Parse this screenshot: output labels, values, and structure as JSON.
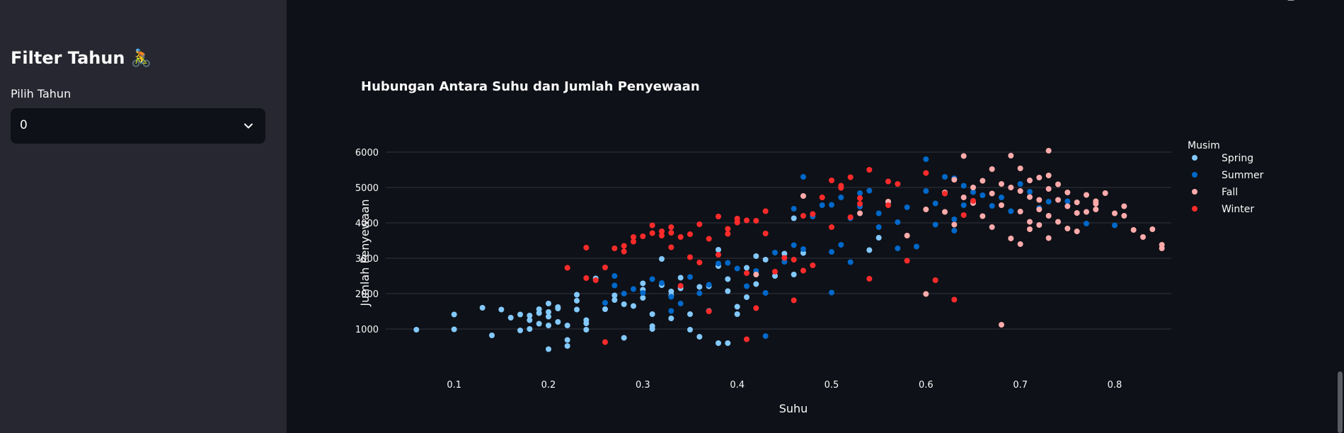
{
  "sidebar": {
    "title": "Filter Tahun 🚴",
    "select_label": "Pilih Tahun",
    "select_value": "0"
  },
  "colors": {
    "Spring": "#83c9ff",
    "Summer": "#0068c9",
    "Fall": "#ffabab",
    "Winter": "#ff2b2b"
  },
  "chart_data": {
    "type": "scatter",
    "title": "Hubungan Antara Suhu dan Jumlah Penyewaan",
    "xlabel": "Suhu",
    "ylabel": "Jumlah Penyewaan",
    "xlim": [
      0.05,
      0.86
    ],
    "ylim": [
      0,
      6500
    ],
    "xticks": [
      0.1,
      0.2,
      0.3,
      0.4,
      0.5,
      0.6,
      0.7,
      0.8
    ],
    "yticks": [
      1000,
      2000,
      3000,
      4000,
      5000,
      6000
    ],
    "grid": "horizontal",
    "legend_title": "Musim",
    "legend_position": "right",
    "series": [
      {
        "name": "Spring",
        "points": [
          [
            0.06,
            980
          ],
          [
            0.1,
            990
          ],
          [
            0.1,
            1410
          ],
          [
            0.13,
            1600
          ],
          [
            0.14,
            820
          ],
          [
            0.15,
            1550
          ],
          [
            0.16,
            1320
          ],
          [
            0.17,
            960
          ],
          [
            0.17,
            1410
          ],
          [
            0.18,
            1380
          ],
          [
            0.18,
            1000
          ],
          [
            0.18,
            1250
          ],
          [
            0.19,
            1150
          ],
          [
            0.19,
            1450
          ],
          [
            0.19,
            1560
          ],
          [
            0.2,
            1720
          ],
          [
            0.2,
            1480
          ],
          [
            0.2,
            1350
          ],
          [
            0.2,
            1100
          ],
          [
            0.2,
            430
          ],
          [
            0.21,
            1620
          ],
          [
            0.21,
            1200
          ],
          [
            0.21,
            1580
          ],
          [
            0.22,
            520
          ],
          [
            0.22,
            690
          ],
          [
            0.22,
            1100
          ],
          [
            0.23,
            1800
          ],
          [
            0.23,
            1970
          ],
          [
            0.23,
            1550
          ],
          [
            0.24,
            1250
          ],
          [
            0.24,
            1160
          ],
          [
            0.24,
            980
          ],
          [
            0.25,
            2430
          ],
          [
            0.26,
            1560
          ],
          [
            0.27,
            1950
          ],
          [
            0.27,
            1820
          ],
          [
            0.28,
            1700
          ],
          [
            0.28,
            750
          ],
          [
            0.29,
            1650
          ],
          [
            0.3,
            1880
          ],
          [
            0.3,
            2110
          ],
          [
            0.3,
            2290
          ],
          [
            0.31,
            1420
          ],
          [
            0.31,
            1080
          ],
          [
            0.31,
            1000
          ],
          [
            0.32,
            2980
          ],
          [
            0.32,
            2240
          ],
          [
            0.33,
            2060
          ],
          [
            0.33,
            1950
          ],
          [
            0.33,
            1300
          ],
          [
            0.34,
            2150
          ],
          [
            0.34,
            2450
          ],
          [
            0.35,
            1420
          ],
          [
            0.35,
            980
          ],
          [
            0.36,
            2190
          ],
          [
            0.36,
            780
          ],
          [
            0.37,
            2210
          ],
          [
            0.37,
            1510
          ],
          [
            0.38,
            600
          ],
          [
            0.38,
            3240
          ],
          [
            0.38,
            2780
          ],
          [
            0.39,
            2410
          ],
          [
            0.39,
            2070
          ],
          [
            0.39,
            600
          ],
          [
            0.4,
            1630
          ],
          [
            0.4,
            1420
          ],
          [
            0.41,
            2730
          ],
          [
            0.41,
            1900
          ],
          [
            0.42,
            2270
          ],
          [
            0.42,
            3060
          ],
          [
            0.43,
            2960
          ],
          [
            0.44,
            2500
          ],
          [
            0.45,
            3130
          ],
          [
            0.46,
            4130
          ],
          [
            0.46,
            2540
          ],
          [
            0.47,
            3150
          ],
          [
            0.54,
            3230
          ],
          [
            0.55,
            3580
          ]
        ]
      },
      {
        "name": "Summer",
        "points": [
          [
            0.26,
            1740
          ],
          [
            0.27,
            2500
          ],
          [
            0.27,
            2230
          ],
          [
            0.28,
            2000
          ],
          [
            0.29,
            2130
          ],
          [
            0.3,
            2020
          ],
          [
            0.31,
            2410
          ],
          [
            0.32,
            2300
          ],
          [
            0.33,
            1510
          ],
          [
            0.33,
            1910
          ],
          [
            0.34,
            1720
          ],
          [
            0.35,
            2470
          ],
          [
            0.36,
            2010
          ],
          [
            0.37,
            2250
          ],
          [
            0.38,
            2850
          ],
          [
            0.39,
            2870
          ],
          [
            0.4,
            2710
          ],
          [
            0.41,
            2210
          ],
          [
            0.42,
            2640
          ],
          [
            0.43,
            800
          ],
          [
            0.43,
            2020
          ],
          [
            0.44,
            3160
          ],
          [
            0.45,
            2900
          ],
          [
            0.46,
            3370
          ],
          [
            0.46,
            4400
          ],
          [
            0.47,
            3260
          ],
          [
            0.47,
            5300
          ],
          [
            0.48,
            4180
          ],
          [
            0.49,
            4500
          ],
          [
            0.5,
            2030
          ],
          [
            0.5,
            3180
          ],
          [
            0.5,
            4510
          ],
          [
            0.51,
            3380
          ],
          [
            0.51,
            4720
          ],
          [
            0.52,
            2890
          ],
          [
            0.52,
            4130
          ],
          [
            0.53,
            4840
          ],
          [
            0.53,
            4460
          ],
          [
            0.54,
            4910
          ],
          [
            0.55,
            3880
          ],
          [
            0.55,
            4270
          ],
          [
            0.56,
            4580
          ],
          [
            0.57,
            3280
          ],
          [
            0.57,
            4020
          ],
          [
            0.58,
            4440
          ],
          [
            0.59,
            3330
          ],
          [
            0.6,
            5800
          ],
          [
            0.6,
            4900
          ],
          [
            0.61,
            4550
          ],
          [
            0.61,
            3950
          ],
          [
            0.62,
            5300
          ],
          [
            0.63,
            5260
          ],
          [
            0.63,
            4100
          ],
          [
            0.63,
            3780
          ],
          [
            0.64,
            4500
          ],
          [
            0.64,
            5050
          ],
          [
            0.65,
            4870
          ],
          [
            0.65,
            4620
          ],
          [
            0.66,
            4780
          ],
          [
            0.67,
            4480
          ],
          [
            0.68,
            4720
          ],
          [
            0.69,
            4330
          ],
          [
            0.7,
            5100
          ],
          [
            0.71,
            4880
          ],
          [
            0.72,
            4420
          ],
          [
            0.73,
            4600
          ],
          [
            0.75,
            4610
          ],
          [
            0.77,
            3980
          ],
          [
            0.78,
            4600
          ],
          [
            0.8,
            3930
          ]
        ]
      },
      {
        "name": "Fall",
        "points": [
          [
            0.42,
            2540
          ],
          [
            0.47,
            4760
          ],
          [
            0.53,
            4270
          ],
          [
            0.56,
            4600
          ],
          [
            0.58,
            3640
          ],
          [
            0.6,
            1990
          ],
          [
            0.6,
            4380
          ],
          [
            0.62,
            4860
          ],
          [
            0.63,
            5220
          ],
          [
            0.63,
            3950
          ],
          [
            0.64,
            5890
          ],
          [
            0.64,
            4720
          ],
          [
            0.65,
            5000
          ],
          [
            0.65,
            4560
          ],
          [
            0.66,
            5190
          ],
          [
            0.66,
            4190
          ],
          [
            0.67,
            5520
          ],
          [
            0.67,
            4830
          ],
          [
            0.67,
            3880
          ],
          [
            0.68,
            5100
          ],
          [
            0.68,
            4500
          ],
          [
            0.68,
            1120
          ],
          [
            0.69,
            5900
          ],
          [
            0.69,
            5000
          ],
          [
            0.69,
            3560
          ],
          [
            0.7,
            5540
          ],
          [
            0.7,
            4900
          ],
          [
            0.7,
            4320
          ],
          [
            0.7,
            3400
          ],
          [
            0.71,
            5200
          ],
          [
            0.71,
            4730
          ],
          [
            0.71,
            4030
          ],
          [
            0.71,
            3820
          ],
          [
            0.72,
            5280
          ],
          [
            0.72,
            4650
          ],
          [
            0.72,
            4380
          ],
          [
            0.72,
            3940
          ],
          [
            0.73,
            6040
          ],
          [
            0.73,
            5340
          ],
          [
            0.73,
            4960
          ],
          [
            0.73,
            4200
          ],
          [
            0.73,
            3570
          ],
          [
            0.74,
            5090
          ],
          [
            0.74,
            4650
          ],
          [
            0.74,
            4030
          ],
          [
            0.75,
            4860
          ],
          [
            0.75,
            4470
          ],
          [
            0.75,
            3840
          ],
          [
            0.76,
            4580
          ],
          [
            0.76,
            4280
          ],
          [
            0.77,
            4790
          ],
          [
            0.77,
            4310
          ],
          [
            0.78,
            4610
          ],
          [
            0.78,
            4380
          ],
          [
            0.78,
            4540
          ],
          [
            0.79,
            4840
          ],
          [
            0.8,
            4270
          ],
          [
            0.81,
            4470
          ],
          [
            0.81,
            4200
          ],
          [
            0.82,
            3800
          ],
          [
            0.83,
            3600
          ],
          [
            0.84,
            3820
          ],
          [
            0.85,
            3380
          ],
          [
            0.85,
            3280
          ],
          [
            0.76,
            3760
          ],
          [
            0.62,
            4310
          ]
        ]
      },
      {
        "name": "Winter",
        "points": [
          [
            0.22,
            2730
          ],
          [
            0.24,
            2440
          ],
          [
            0.24,
            3300
          ],
          [
            0.25,
            2380
          ],
          [
            0.26,
            630
          ],
          [
            0.26,
            2740
          ],
          [
            0.27,
            3280
          ],
          [
            0.28,
            3350
          ],
          [
            0.28,
            3190
          ],
          [
            0.29,
            3470
          ],
          [
            0.29,
            3600
          ],
          [
            0.3,
            3620
          ],
          [
            0.31,
            3930
          ],
          [
            0.31,
            3710
          ],
          [
            0.32,
            3760
          ],
          [
            0.32,
            3640
          ],
          [
            0.33,
            3880
          ],
          [
            0.33,
            3720
          ],
          [
            0.33,
            3310
          ],
          [
            0.34,
            3600
          ],
          [
            0.34,
            2220
          ],
          [
            0.35,
            3680
          ],
          [
            0.35,
            3030
          ],
          [
            0.36,
            3960
          ],
          [
            0.36,
            2880
          ],
          [
            0.37,
            3550
          ],
          [
            0.37,
            1500
          ],
          [
            0.38,
            4180
          ],
          [
            0.38,
            3100
          ],
          [
            0.39,
            3830
          ],
          [
            0.39,
            3690
          ],
          [
            0.4,
            4030
          ],
          [
            0.4,
            4010
          ],
          [
            0.4,
            4120
          ],
          [
            0.41,
            4070
          ],
          [
            0.41,
            2580
          ],
          [
            0.41,
            710
          ],
          [
            0.42,
            4060
          ],
          [
            0.42,
            1590
          ],
          [
            0.43,
            4330
          ],
          [
            0.43,
            3700
          ],
          [
            0.44,
            2620
          ],
          [
            0.45,
            3010
          ],
          [
            0.46,
            1810
          ],
          [
            0.46,
            2960
          ],
          [
            0.47,
            4200
          ],
          [
            0.47,
            2650
          ],
          [
            0.48,
            4250
          ],
          [
            0.48,
            2800
          ],
          [
            0.49,
            4720
          ],
          [
            0.5,
            5200
          ],
          [
            0.5,
            3880
          ],
          [
            0.51,
            5050
          ],
          [
            0.51,
            4990
          ],
          [
            0.52,
            5290
          ],
          [
            0.52,
            4160
          ],
          [
            0.53,
            4700
          ],
          [
            0.53,
            4540
          ],
          [
            0.54,
            5500
          ],
          [
            0.54,
            2420
          ],
          [
            0.56,
            4500
          ],
          [
            0.56,
            5170
          ],
          [
            0.57,
            5100
          ],
          [
            0.58,
            2930
          ],
          [
            0.6,
            5410
          ],
          [
            0.61,
            2380
          ],
          [
            0.62,
            4830
          ],
          [
            0.63,
            1830
          ],
          [
            0.64,
            4220
          ],
          [
            0.65,
            4620
          ]
        ]
      }
    ]
  }
}
